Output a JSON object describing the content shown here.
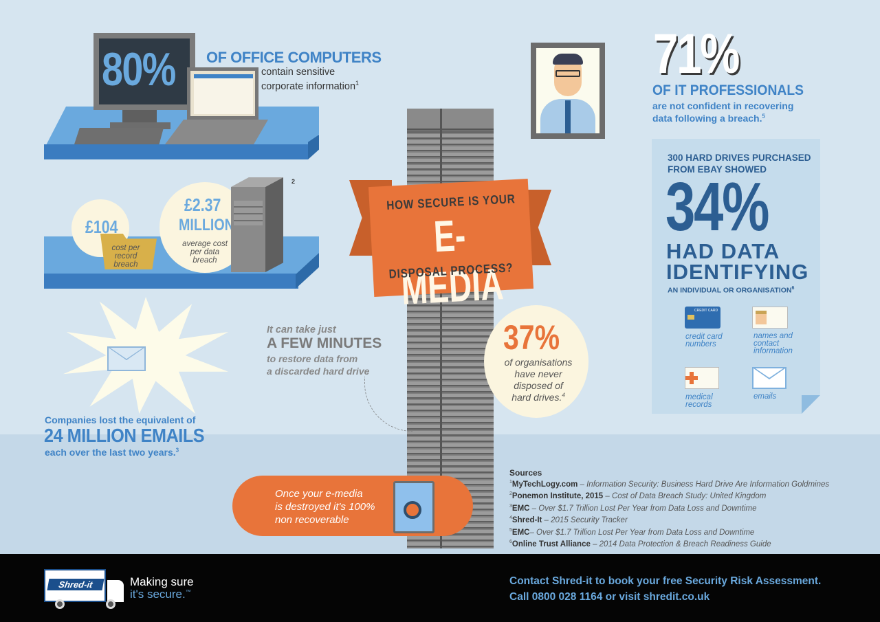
{
  "stat_80": {
    "value": "80%",
    "heading": "OF OFFICE COMPUTERS",
    "text1": "contain sensitive",
    "text2": "corporate information",
    "ref": "1"
  },
  "costs": {
    "record_value": "£104",
    "record_label1": "cost per",
    "record_label2": "record",
    "record_label3": "breach",
    "breach_value1": "£2.37",
    "breach_value2": "MILLION",
    "breach_label1": "average cost",
    "breach_label2": "per data",
    "breach_label3": "breach",
    "ref": "2"
  },
  "emails": {
    "line1": "Companies lost the equivalent of",
    "line2": "24 MILLION EMAILS",
    "line3": "each over the last two years.",
    "ref": "3"
  },
  "restore": {
    "line1": "It can take just",
    "line2": "A FEW MINUTES",
    "line3": "to restore data from",
    "line4": "a discarded hard drive"
  },
  "banner": {
    "line1": "HOW SECURE IS YOUR",
    "line2": "E-MEDIA",
    "line3": "DISPOSAL PROCESS?"
  },
  "stat_37": {
    "value": "37%",
    "line1": "of organisations",
    "line2": "have never",
    "line3": "disposed of",
    "line4": "hard drives.",
    "ref": "4"
  },
  "stat_71": {
    "value": "71%",
    "heading": "OF IT PROFESSIONALS",
    "line1": "are not confident in recovering",
    "line2": "data following a breach.",
    "ref": "5"
  },
  "ebay": {
    "line1": "300 HARD DRIVES PURCHASED",
    "line2": "FROM EBAY SHOWED",
    "value": "34%",
    "line3": "HAD DATA",
    "line4": "IDENTIFYING",
    "line5": "AN INDIVIDUAL OR ORGANISATION",
    "ref": "6",
    "card_text": "CREDIT CARD",
    "items": [
      {
        "label1": "credit card",
        "label2": "numbers",
        "label3": ""
      },
      {
        "label1": "names and",
        "label2": "contact",
        "label3": "information"
      },
      {
        "label1": "medical",
        "label2": "records",
        "label3": ""
      },
      {
        "label1": "emails",
        "label2": "",
        "label3": ""
      }
    ]
  },
  "destroyed": {
    "line1": "Once your e-media",
    "line2": "is destroyed it's 100%",
    "line3": "non recoverable"
  },
  "sources": {
    "title": "Sources",
    "items": [
      {
        "num": "1",
        "org": "MyTechLogy.com",
        "text": " – Information Security: Business Hard Drive Are Information Goldmines"
      },
      {
        "num": "2",
        "org": "Ponemon Institute, 2015",
        "text": " – Cost of Data Breach Study: United Kingdom"
      },
      {
        "num": "3",
        "org": "EMC",
        "text": " – Over $1.7 Trillion Lost Per Year from Data Loss and Downtime"
      },
      {
        "num": "4",
        "org": "Shred-It",
        "text": " – 2015 Security Tracker"
      },
      {
        "num": "5",
        "org": "EMC",
        "text": "– Over $1.7 Trillion Lost Per Year from Data Loss and Downtime"
      },
      {
        "num": "6",
        "org": "Online Trust Alliance",
        "text": " – 2014 Data Protection & Breach Readiness Guide"
      }
    ]
  },
  "footer": {
    "logo_text": "Shred-it",
    "tagline1": "Making sure",
    "tagline2": "it's secure.",
    "tm": "™",
    "contact1": "Contact Shred-it to book your free Security Risk Assessment.",
    "contact2": "Call 0800 028 1164 or visit shredit.co.uk"
  },
  "colors": {
    "background": "#d6e5f0",
    "accent_blue": "#3f83c6",
    "accent_orange": "#e8743a",
    "navy": "#2c5e92",
    "footer": "#050505"
  }
}
